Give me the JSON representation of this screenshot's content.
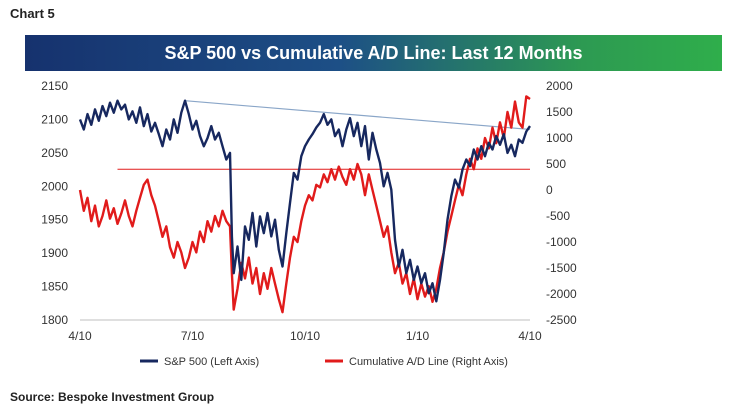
{
  "header": {
    "chart_label": "Chart 5"
  },
  "footer": {
    "source": "Source: Bespoke Investment Group"
  },
  "colors": {
    "title_gradient": [
      "#16326e",
      "#1d4f86",
      "#2d9a52",
      "#2fae4b"
    ],
    "sp500": "#17285f",
    "ad_line": "#e11b1b",
    "trend": "#8aa6c8",
    "reference": "#e11b1b"
  },
  "chart_data": {
    "type": "line",
    "title": "S&P 500 vs Cumulative A/D Line: Last 12 Months",
    "legend_position": "bottom",
    "grid": false,
    "x_ticks": [
      "4/10",
      "7/10",
      "10/10",
      "1/10",
      "4/10"
    ],
    "x_domain": [
      0,
      12
    ],
    "y_left": {
      "range": [
        1800,
        2150
      ],
      "ticks": [
        1800,
        1850,
        1900,
        1950,
        2000,
        2050,
        2100,
        2150
      ]
    },
    "y_right": {
      "range": [
        -2500,
        2000
      ],
      "ticks": [
        -2500,
        -2000,
        -1500,
        -1000,
        -500,
        0,
        500,
        1000,
        1500,
        2000
      ]
    },
    "series": [
      {
        "name": "S&P 500 (Left Axis)",
        "axis": "left",
        "points": [
          [
            0,
            2100
          ],
          [
            0.1,
            2085
          ],
          [
            0.2,
            2108
          ],
          [
            0.3,
            2092
          ],
          [
            0.4,
            2115
          ],
          [
            0.5,
            2098
          ],
          [
            0.6,
            2120
          ],
          [
            0.7,
            2105
          ],
          [
            0.8,
            2125
          ],
          [
            0.9,
            2110
          ],
          [
            1.0,
            2128
          ],
          [
            1.1,
            2115
          ],
          [
            1.2,
            2122
          ],
          [
            1.3,
            2100
          ],
          [
            1.4,
            2112
          ],
          [
            1.5,
            2095
          ],
          [
            1.6,
            2118
          ],
          [
            1.7,
            2090
          ],
          [
            1.8,
            2108
          ],
          [
            1.9,
            2082
          ],
          [
            2.0,
            2095
          ],
          [
            2.1,
            2078
          ],
          [
            2.2,
            2060
          ],
          [
            2.3,
            2085
          ],
          [
            2.4,
            2070
          ],
          [
            2.5,
            2100
          ],
          [
            2.6,
            2080
          ],
          [
            2.7,
            2110
          ],
          [
            2.8,
            2128
          ],
          [
            2.9,
            2108
          ],
          [
            3.0,
            2085
          ],
          [
            3.1,
            2098
          ],
          [
            3.2,
            2075
          ],
          [
            3.3,
            2060
          ],
          [
            3.4,
            2072
          ],
          [
            3.5,
            2090
          ],
          [
            3.6,
            2070
          ],
          [
            3.7,
            2080
          ],
          [
            3.8,
            2060
          ],
          [
            3.9,
            2040
          ],
          [
            4.0,
            2050
          ],
          [
            4.05,
            1925
          ],
          [
            4.1,
            1870
          ],
          [
            4.2,
            1910
          ],
          [
            4.3,
            1860
          ],
          [
            4.4,
            1940
          ],
          [
            4.5,
            1920
          ],
          [
            4.6,
            1960
          ],
          [
            4.7,
            1910
          ],
          [
            4.8,
            1955
          ],
          [
            4.9,
            1930
          ],
          [
            5.0,
            1960
          ],
          [
            5.1,
            1925
          ],
          [
            5.2,
            1950
          ],
          [
            5.3,
            1905
          ],
          [
            5.4,
            1880
          ],
          [
            5.5,
            1930
          ],
          [
            5.6,
            1975
          ],
          [
            5.7,
            2020
          ],
          [
            5.8,
            2010
          ],
          [
            5.9,
            2045
          ],
          [
            6.0,
            2060
          ],
          [
            6.1,
            2070
          ],
          [
            6.2,
            2078
          ],
          [
            6.3,
            2088
          ],
          [
            6.4,
            2095
          ],
          [
            6.5,
            2108
          ],
          [
            6.6,
            2092
          ],
          [
            6.7,
            2100
          ],
          [
            6.8,
            2075
          ],
          [
            6.9,
            2085
          ],
          [
            7.0,
            2060
          ],
          [
            7.1,
            2085
          ],
          [
            7.2,
            2102
          ],
          [
            7.3,
            2075
          ],
          [
            7.4,
            2095
          ],
          [
            7.5,
            2060
          ],
          [
            7.6,
            2090
          ],
          [
            7.7,
            2040
          ],
          [
            7.8,
            2080
          ],
          [
            7.9,
            2055
          ],
          [
            8.0,
            2035
          ],
          [
            8.1,
            2000
          ],
          [
            8.2,
            2020
          ],
          [
            8.3,
            1995
          ],
          [
            8.4,
            1920
          ],
          [
            8.5,
            1880
          ],
          [
            8.6,
            1905
          ],
          [
            8.7,
            1870
          ],
          [
            8.8,
            1890
          ],
          [
            8.9,
            1860
          ],
          [
            9.0,
            1880
          ],
          [
            9.1,
            1855
          ],
          [
            9.2,
            1870
          ],
          [
            9.3,
            1840
          ],
          [
            9.4,
            1855
          ],
          [
            9.5,
            1828
          ],
          [
            9.6,
            1860
          ],
          [
            9.7,
            1900
          ],
          [
            9.8,
            1950
          ],
          [
            9.9,
            1985
          ],
          [
            10.0,
            2010
          ],
          [
            10.1,
            1998
          ],
          [
            10.2,
            2025
          ],
          [
            10.3,
            2040
          ],
          [
            10.4,
            2030
          ],
          [
            10.5,
            2055
          ],
          [
            10.6,
            2040
          ],
          [
            10.7,
            2060
          ],
          [
            10.8,
            2045
          ],
          [
            10.9,
            2065
          ],
          [
            11.0,
            2055
          ],
          [
            11.1,
            2075
          ],
          [
            11.2,
            2062
          ],
          [
            11.3,
            2078
          ],
          [
            11.4,
            2050
          ],
          [
            11.5,
            2062
          ],
          [
            11.6,
            2045
          ],
          [
            11.7,
            2070
          ],
          [
            11.8,
            2065
          ],
          [
            11.9,
            2082
          ],
          [
            12.0,
            2090
          ]
        ]
      },
      {
        "name": "Cumulative A/D Line (Right Axis)",
        "axis": "right",
        "points": [
          [
            0,
            0
          ],
          [
            0.1,
            -400
          ],
          [
            0.2,
            -150
          ],
          [
            0.3,
            -600
          ],
          [
            0.4,
            -300
          ],
          [
            0.5,
            -700
          ],
          [
            0.6,
            -500
          ],
          [
            0.7,
            -200
          ],
          [
            0.8,
            -550
          ],
          [
            0.9,
            -350
          ],
          [
            1.0,
            -650
          ],
          [
            1.1,
            -450
          ],
          [
            1.2,
            -200
          ],
          [
            1.3,
            -500
          ],
          [
            1.4,
            -700
          ],
          [
            1.5,
            -400
          ],
          [
            1.6,
            -150
          ],
          [
            1.7,
            100
          ],
          [
            1.8,
            200
          ],
          [
            1.9,
            -100
          ],
          [
            2.0,
            -300
          ],
          [
            2.1,
            -600
          ],
          [
            2.2,
            -900
          ],
          [
            2.3,
            -700
          ],
          [
            2.4,
            -1100
          ],
          [
            2.5,
            -1300
          ],
          [
            2.6,
            -1000
          ],
          [
            2.7,
            -1200
          ],
          [
            2.8,
            -1500
          ],
          [
            2.9,
            -1300
          ],
          [
            3.0,
            -1000
          ],
          [
            3.1,
            -1200
          ],
          [
            3.2,
            -800
          ],
          [
            3.3,
            -1000
          ],
          [
            3.4,
            -600
          ],
          [
            3.5,
            -800
          ],
          [
            3.6,
            -500
          ],
          [
            3.7,
            -700
          ],
          [
            3.8,
            -400
          ],
          [
            3.9,
            -600
          ],
          [
            4.0,
            -700
          ],
          [
            4.05,
            -1600
          ],
          [
            4.1,
            -2300
          ],
          [
            4.2,
            -1900
          ],
          [
            4.3,
            -1400
          ],
          [
            4.4,
            -1700
          ],
          [
            4.5,
            -1300
          ],
          [
            4.6,
            -1800
          ],
          [
            4.7,
            -1500
          ],
          [
            4.8,
            -2000
          ],
          [
            4.9,
            -1600
          ],
          [
            5.0,
            -1900
          ],
          [
            5.1,
            -1500
          ],
          [
            5.2,
            -1800
          ],
          [
            5.3,
            -2100
          ],
          [
            5.4,
            -2350
          ],
          [
            5.5,
            -1800
          ],
          [
            5.6,
            -1300
          ],
          [
            5.7,
            -900
          ],
          [
            5.8,
            -1000
          ],
          [
            5.9,
            -600
          ],
          [
            6.0,
            -300
          ],
          [
            6.1,
            -100
          ],
          [
            6.2,
            -200
          ],
          [
            6.3,
            100
          ],
          [
            6.4,
            50
          ],
          [
            6.5,
            300
          ],
          [
            6.6,
            150
          ],
          [
            6.7,
            400
          ],
          [
            6.8,
            200
          ],
          [
            6.9,
            450
          ],
          [
            7.0,
            250
          ],
          [
            7.1,
            100
          ],
          [
            7.2,
            400
          ],
          [
            7.3,
            200
          ],
          [
            7.4,
            500
          ],
          [
            7.5,
            300
          ],
          [
            7.6,
            -100
          ],
          [
            7.7,
            300
          ],
          [
            7.8,
            0
          ],
          [
            7.9,
            -300
          ],
          [
            8.0,
            -600
          ],
          [
            8.1,
            -900
          ],
          [
            8.2,
            -700
          ],
          [
            8.3,
            -1200
          ],
          [
            8.4,
            -1600
          ],
          [
            8.5,
            -1400
          ],
          [
            8.6,
            -1800
          ],
          [
            8.7,
            -1600
          ],
          [
            8.8,
            -2000
          ],
          [
            8.9,
            -1700
          ],
          [
            9.0,
            -2100
          ],
          [
            9.1,
            -1800
          ],
          [
            9.2,
            -2050
          ],
          [
            9.3,
            -1850
          ],
          [
            9.4,
            -2150
          ],
          [
            9.5,
            -1900
          ],
          [
            9.6,
            -1500
          ],
          [
            9.7,
            -1200
          ],
          [
            9.8,
            -800
          ],
          [
            9.9,
            -500
          ],
          [
            10.0,
            -200
          ],
          [
            10.1,
            100
          ],
          [
            10.2,
            -100
          ],
          [
            10.3,
            300
          ],
          [
            10.4,
            600
          ],
          [
            10.5,
            400
          ],
          [
            10.6,
            800
          ],
          [
            10.7,
            600
          ],
          [
            10.8,
            1000
          ],
          [
            10.9,
            800
          ],
          [
            11.0,
            1200
          ],
          [
            11.1,
            900
          ],
          [
            11.2,
            1300
          ],
          [
            11.3,
            1000
          ],
          [
            11.4,
            1500
          ],
          [
            11.5,
            1200
          ],
          [
            11.6,
            1700
          ],
          [
            11.7,
            1300
          ],
          [
            11.8,
            1200
          ],
          [
            11.9,
            1800
          ],
          [
            12.0,
            1750
          ]
        ]
      }
    ],
    "annotations": [
      {
        "type": "trendline",
        "axis": "left",
        "from": [
          2.8,
          2128
        ],
        "to": [
          12.0,
          2085
        ]
      },
      {
        "type": "horizontal_reference",
        "axis": "right",
        "y": 400,
        "x_from": 1.0,
        "x_to": 12.0
      }
    ]
  }
}
